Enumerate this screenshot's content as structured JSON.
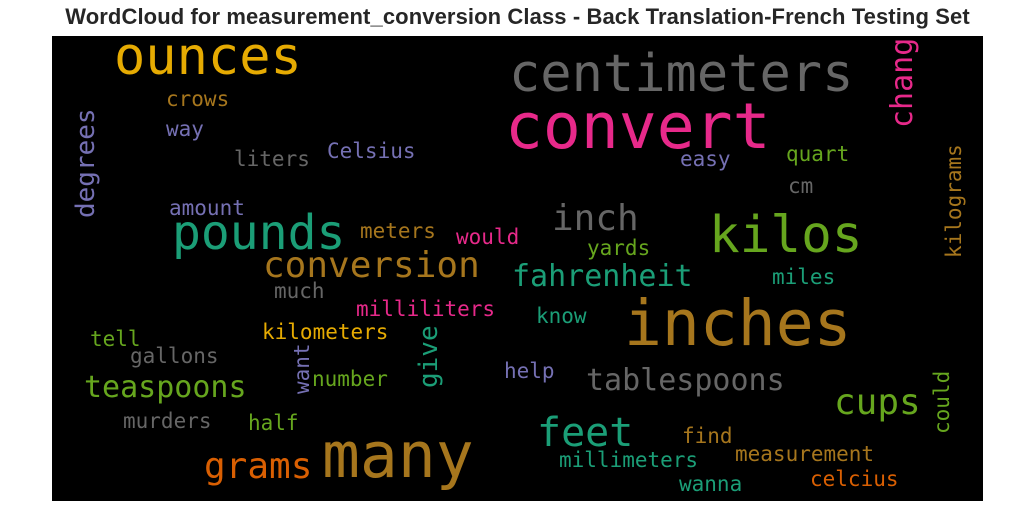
{
  "chart_data": {
    "type": "wordcloud",
    "title": "WordCloud for measurement_conversion Class - Back Translation-French Testing Set",
    "background": "#000000",
    "colormap": [
      "#e6ab02",
      "#666666",
      "#e7298a",
      "#1b9e77",
      "#66a61e",
      "#a6761d",
      "#7570b3",
      "#d95f02"
    ],
    "words": [
      {
        "text": "ounces",
        "color": "#e6ab02"
      },
      {
        "text": "centimeters",
        "color": "#666666"
      },
      {
        "text": "convert",
        "color": "#e7298a"
      },
      {
        "text": "change",
        "color": "#e7298a"
      },
      {
        "text": "crows",
        "color": "#a6761d"
      },
      {
        "text": "degrees",
        "color": "#7570b3"
      },
      {
        "text": "way",
        "color": "#7570b3"
      },
      {
        "text": "liters",
        "color": "#666666"
      },
      {
        "text": "Celsius",
        "color": "#7570b3"
      },
      {
        "text": "easy",
        "color": "#7570b3"
      },
      {
        "text": "quart",
        "color": "#66a61e"
      },
      {
        "text": "kilograms",
        "color": "#a6761d"
      },
      {
        "text": "cm",
        "color": "#666666"
      },
      {
        "text": "amount",
        "color": "#7570b3"
      },
      {
        "text": "inch",
        "color": "#666666"
      },
      {
        "text": "pounds",
        "color": "#1b9e77"
      },
      {
        "text": "kilos",
        "color": "#66a61e"
      },
      {
        "text": "meters",
        "color": "#a6761d"
      },
      {
        "text": "would",
        "color": "#e7298a"
      },
      {
        "text": "yards",
        "color": "#66a61e"
      },
      {
        "text": "conversion",
        "color": "#a6761d"
      },
      {
        "text": "fahrenheit",
        "color": "#1b9e77"
      },
      {
        "text": "miles",
        "color": "#1b9e77"
      },
      {
        "text": "much",
        "color": "#666666"
      },
      {
        "text": "milliliters",
        "color": "#e7298a"
      },
      {
        "text": "inches",
        "color": "#a6761d"
      },
      {
        "text": "know",
        "color": "#1b9e77"
      },
      {
        "text": "tell",
        "color": "#66a61e"
      },
      {
        "text": "kilometers",
        "color": "#e6ab02"
      },
      {
        "text": "give",
        "color": "#1b9e77"
      },
      {
        "text": "gallons",
        "color": "#666666"
      },
      {
        "text": "want",
        "color": "#7570b3"
      },
      {
        "text": "number",
        "color": "#66a61e"
      },
      {
        "text": "help",
        "color": "#7570b3"
      },
      {
        "text": "tablespoons",
        "color": "#666666"
      },
      {
        "text": "teaspoons",
        "color": "#66a61e"
      },
      {
        "text": "could",
        "color": "#66a61e"
      },
      {
        "text": "cups",
        "color": "#66a61e"
      },
      {
        "text": "murders",
        "color": "#666666"
      },
      {
        "text": "half",
        "color": "#66a61e"
      },
      {
        "text": "many",
        "color": "#a6761d"
      },
      {
        "text": "feet",
        "color": "#1b9e77"
      },
      {
        "text": "find",
        "color": "#a6761d"
      },
      {
        "text": "measurement",
        "color": "#a6761d"
      },
      {
        "text": "grams",
        "color": "#d95f02"
      },
      {
        "text": "millimeters",
        "color": "#1b9e77"
      },
      {
        "text": "wanna",
        "color": "#1b9e77"
      },
      {
        "text": "celcius",
        "color": "#d95f02"
      }
    ]
  }
}
